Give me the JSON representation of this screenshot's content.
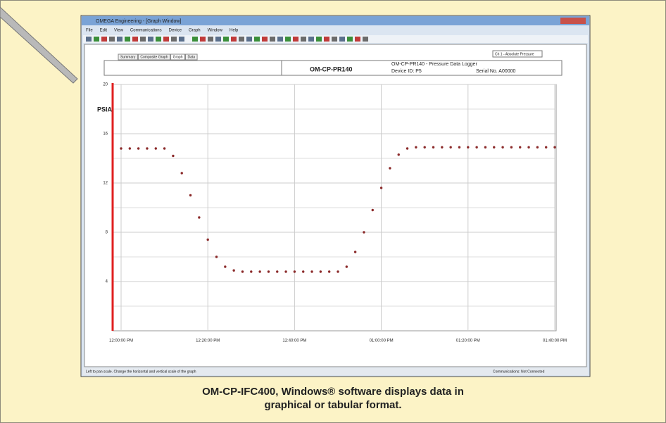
{
  "window": {
    "title": "OMEGA Engineering - [Graph Window]",
    "menu": [
      "File",
      "Edit",
      "View",
      "Communications",
      "Device",
      "Graph",
      "Window",
      "Help"
    ],
    "tabs": [
      "Summary",
      "Composite Graph",
      "Graph",
      "Data"
    ],
    "channel": "Ch 1 - Absolute Pressure",
    "header": {
      "model": "OM-CP-PR140",
      "description": "OM-CP-PR140 - Pressure Data Logger",
      "device_id": "Device ID: P5",
      "serial": "Serial No. A00000"
    },
    "status": {
      "hint": "Left to pan scale. Change the horizontal and vertical scale of the graph",
      "connection": "Communications: Not Connected"
    }
  },
  "chart_data": {
    "type": "scatter",
    "y_label": "PSIA",
    "color": "#8b2a2a",
    "x": [
      0,
      2,
      4,
      6,
      8,
      10,
      12,
      14,
      16,
      18,
      20,
      22,
      24,
      26,
      28,
      30,
      32,
      34,
      36,
      38,
      40,
      42,
      44,
      46,
      48,
      50,
      52,
      54,
      56,
      58,
      60,
      62,
      64,
      66,
      68,
      70,
      72,
      74,
      76,
      78,
      80,
      82,
      84,
      86,
      88,
      90,
      92,
      94,
      96,
      98,
      100
    ],
    "values": [
      14.8,
      14.8,
      14.8,
      14.8,
      14.8,
      14.8,
      14.2,
      12.8,
      11.0,
      9.2,
      7.4,
      6.0,
      5.2,
      4.9,
      4.8,
      4.8,
      4.8,
      4.8,
      4.8,
      4.8,
      4.8,
      4.8,
      4.8,
      4.8,
      4.8,
      4.8,
      5.2,
      6.4,
      8.0,
      9.8,
      11.6,
      13.2,
      14.3,
      14.8,
      14.9,
      14.9,
      14.9,
      14.9,
      14.9,
      14.9,
      14.9,
      14.9,
      14.9,
      14.9,
      14.9,
      14.9,
      14.9,
      14.9,
      14.9,
      14.9,
      14.9
    ],
    "xlim": [
      0,
      100
    ],
    "ylim": [
      0,
      20
    ],
    "xticks": [
      {
        "value": 0,
        "label": "12:00:00 PM"
      },
      {
        "value": 20,
        "label": "12:20:00 PM"
      },
      {
        "value": 40,
        "label": "12:40:00 PM"
      },
      {
        "value": 60,
        "label": "01:00:00 PM"
      },
      {
        "value": 80,
        "label": "01:20:00 PM"
      },
      {
        "value": 100,
        "label": "01:40:00 PM"
      }
    ],
    "yticks": [
      4,
      8,
      12,
      16,
      20
    ],
    "minor_yticks": [
      2,
      6,
      10,
      14,
      18
    ],
    "grid": true
  },
  "caption": [
    "OM-CP-IFC400, Windows® software displays data in",
    "graphical or tabular format."
  ]
}
